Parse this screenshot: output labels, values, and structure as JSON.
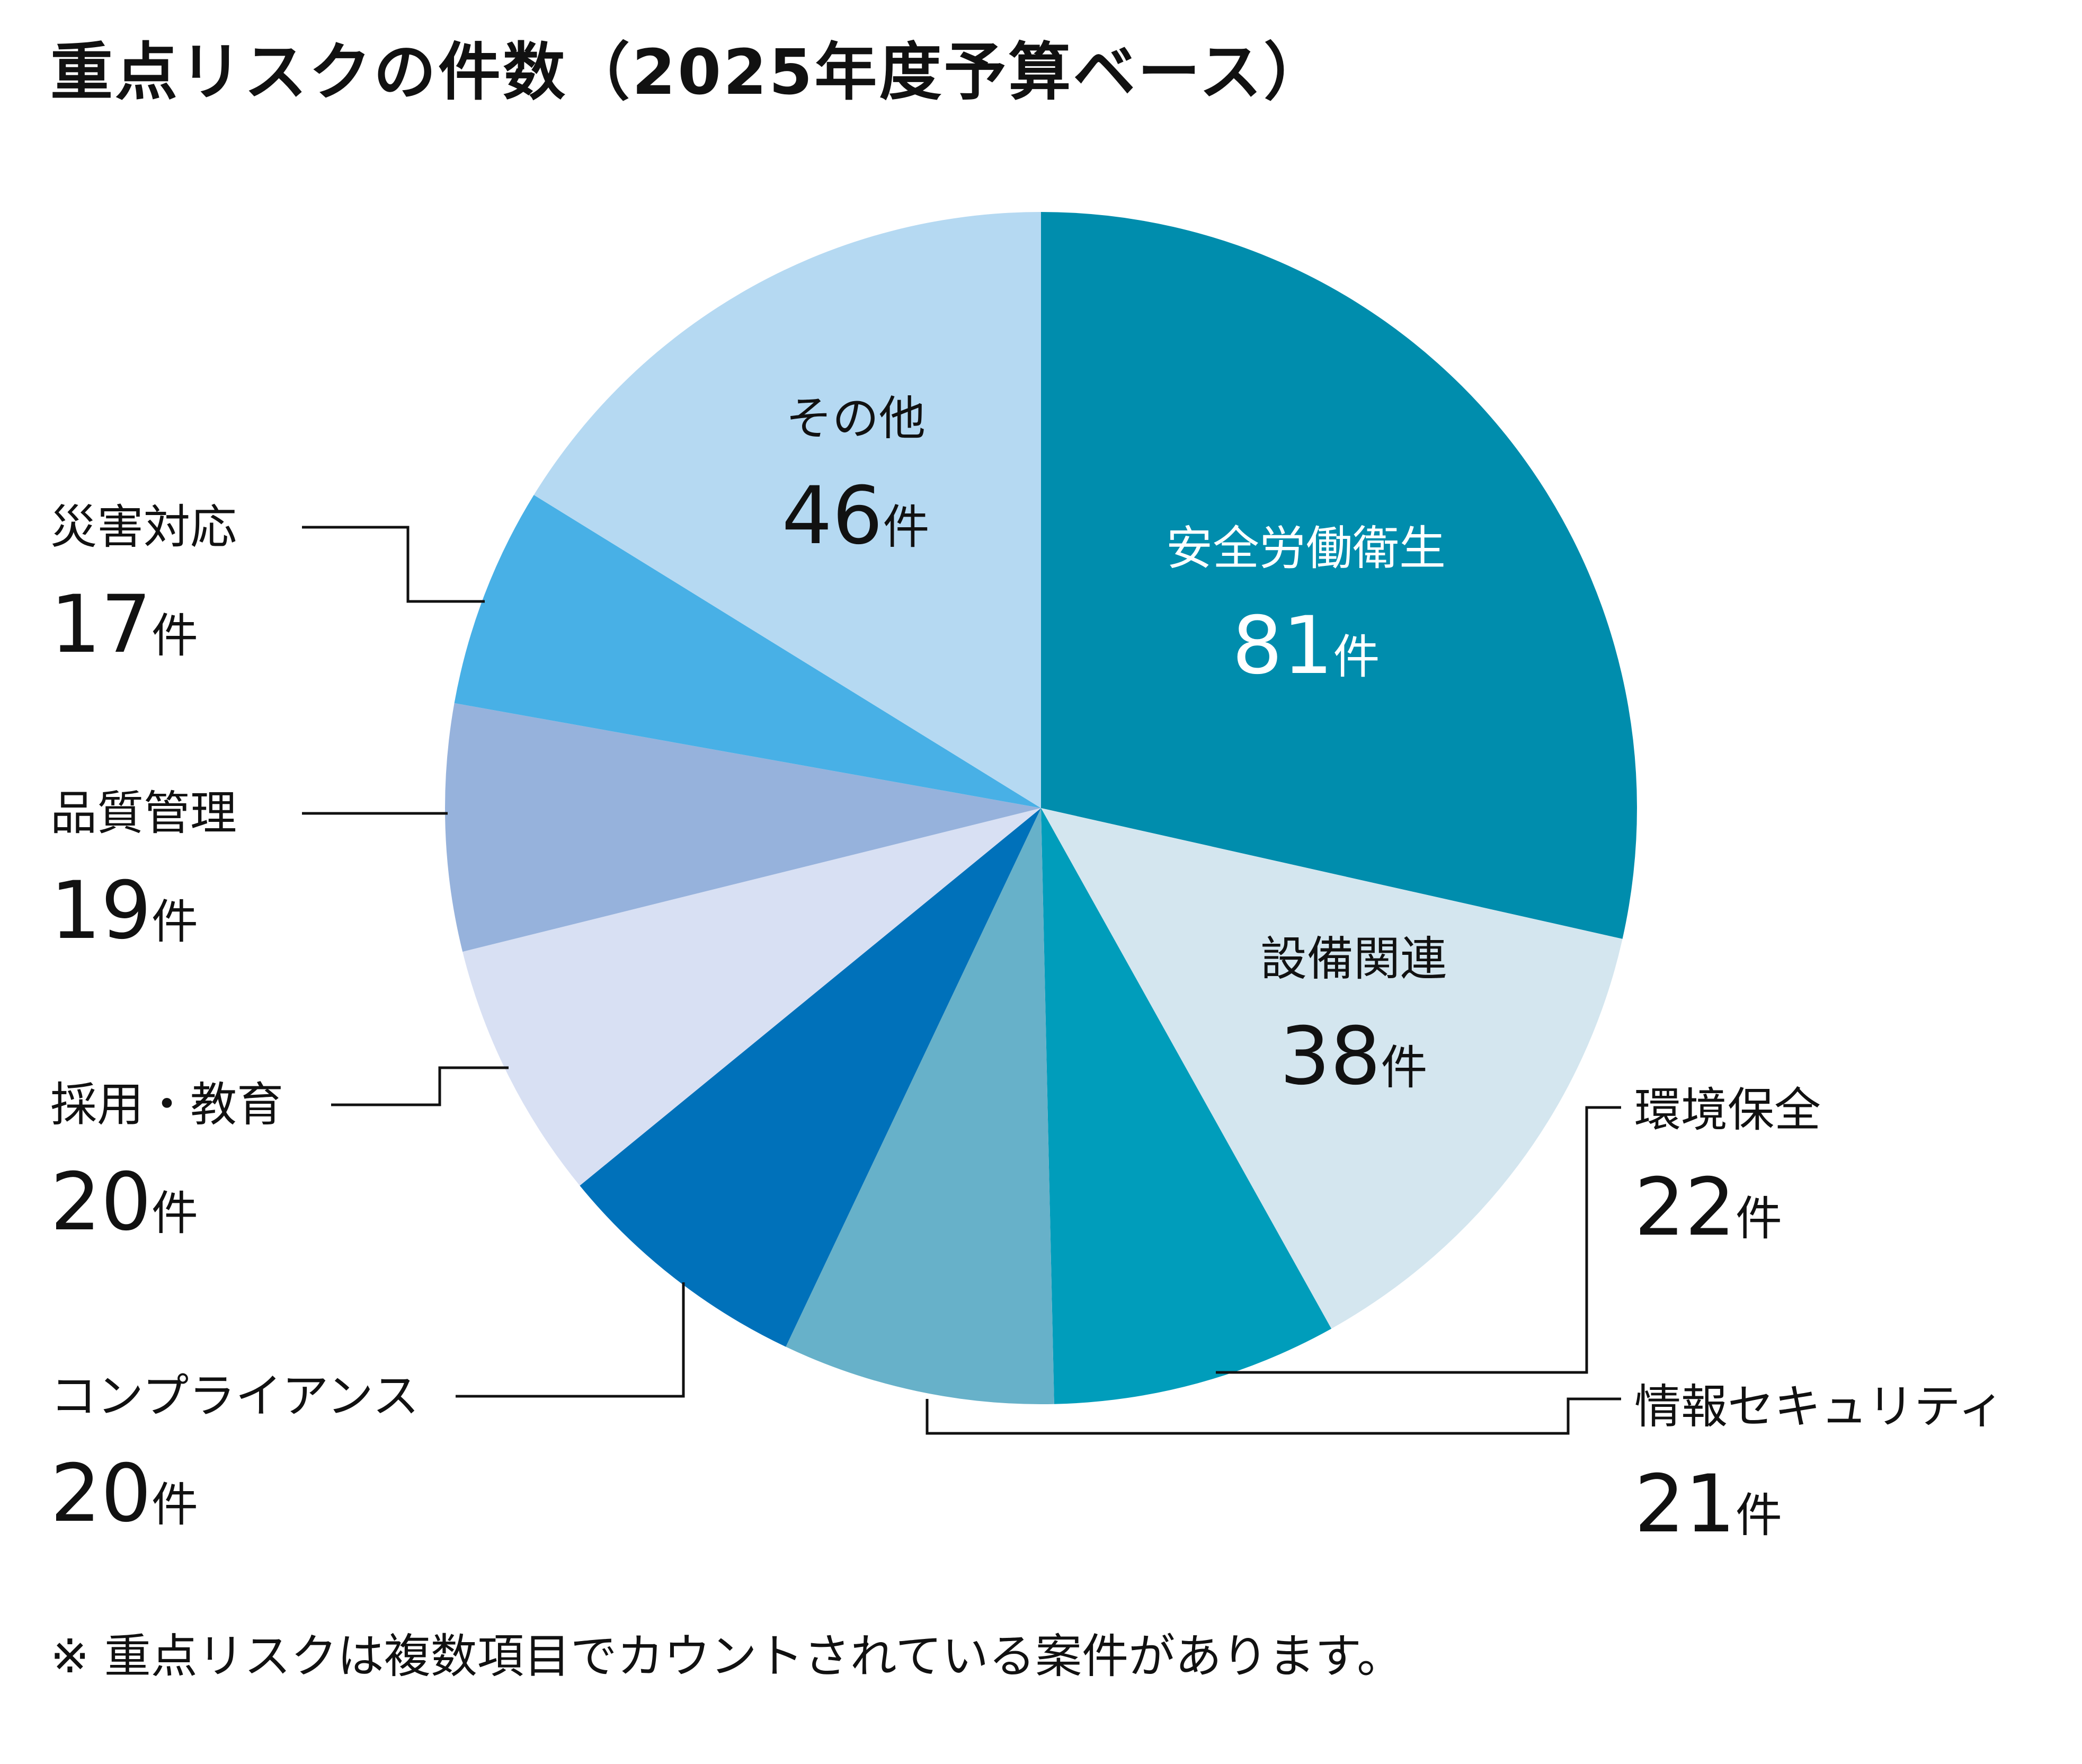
{
  "title": "重点リスクの件数（2025年度予算ベース）",
  "footnote": "※ 重点リスクは複数項目でカウントされている案件があります。",
  "unit": "件",
  "chart_data": {
    "type": "pie",
    "title": "重点リスクの件数（2025年度予算ベース）",
    "start": "top",
    "direction": "clockwise",
    "slices": [
      {
        "label": "安全労働衛生",
        "value": 81,
        "color": "#008DAD",
        "text_color": "#ffffff",
        "label_mode": "inside"
      },
      {
        "label": "設備関連",
        "value": 38,
        "color": "#D4E6EF",
        "text_color": "#111111",
        "label_mode": "inside"
      },
      {
        "label": "環境保全",
        "value": 22,
        "color": "#009DBB",
        "text_color": "#111111",
        "label_mode": "outside-right"
      },
      {
        "label": "情報セキュリティ",
        "value": 21,
        "color": "#67B1C9",
        "text_color": "#111111",
        "label_mode": "outside-right"
      },
      {
        "label": "コンプライアンス",
        "value": 20,
        "color": "#0071BA",
        "text_color": "#111111",
        "label_mode": "outside-left"
      },
      {
        "label": "採用・教育",
        "value": 20,
        "color": "#D8E0F3",
        "text_color": "#111111",
        "label_mode": "outside-left"
      },
      {
        "label": "品質管理",
        "value": 19,
        "color": "#96B2DC",
        "text_color": "#111111",
        "label_mode": "outside-left"
      },
      {
        "label": "災害対応",
        "value": 17,
        "color": "#48B0E6",
        "text_color": "#111111",
        "label_mode": "outside-left"
      },
      {
        "label": "その他",
        "value": 46,
        "color": "#B5D9F2",
        "text_color": "#111111",
        "label_mode": "inside"
      }
    ]
  }
}
